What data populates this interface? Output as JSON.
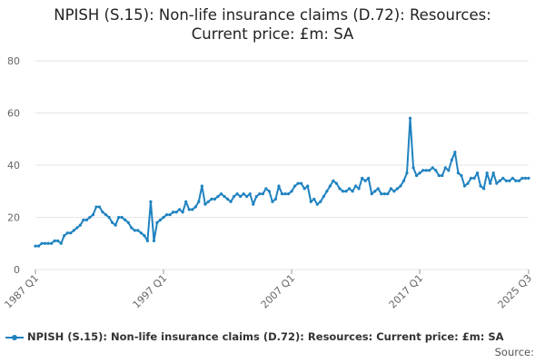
{
  "title_lines": [
    "NPISH (S.15): Non-life insurance claims (D.72): Resources:",
    "Current price: £m: SA"
  ],
  "source_label": "Source:",
  "colors": {
    "series": "#1f82c0",
    "grid": "#e6e6e6",
    "axis_text": "#666666"
  },
  "chart_data": {
    "type": "line",
    "title": "NPISH (S.15): Non-life insurance claims (D.72): Resources: Current price: £m: SA",
    "xlabel": "",
    "ylabel": "",
    "ylim": [
      0,
      80
    ],
    "yticks": [
      0,
      20,
      40,
      60,
      80
    ],
    "x_tick_labels": [
      "1987 Q1",
      "1997 Q1",
      "2007 Q1",
      "2017 Q1",
      "2025 Q3"
    ],
    "x_tick_index": [
      0,
      40,
      80,
      120,
      154
    ],
    "grid": true,
    "legend_position": "bottom",
    "series": [
      {
        "name": "NPISH (S.15): Non-life insurance claims (D.72): Resources: Current price: £m: SA",
        "start": "1987 Q1",
        "values": [
          9,
          9,
          10,
          10,
          10,
          10,
          11,
          11,
          10,
          13,
          14,
          14,
          15,
          16,
          17,
          19,
          19,
          20,
          21,
          24,
          24,
          22,
          21,
          20,
          18,
          17,
          20,
          20,
          19,
          18,
          16,
          15,
          15,
          14,
          13,
          11,
          26,
          11,
          18,
          19,
          20,
          21,
          21,
          22,
          22,
          23,
          22,
          26,
          23,
          23,
          24,
          26,
          32,
          25,
          26,
          27,
          27,
          28,
          29,
          28,
          27,
          26,
          28,
          29,
          28,
          29,
          28,
          29,
          25,
          28,
          29,
          29,
          31,
          30,
          26,
          27,
          32,
          29,
          29,
          29,
          30,
          32,
          33,
          33,
          31,
          32,
          26,
          27,
          25,
          26,
          28,
          30,
          32,
          34,
          33,
          31,
          30,
          30,
          31,
          30,
          32,
          31,
          35,
          34,
          35,
          29,
          30,
          31,
          29,
          29,
          29,
          31,
          30,
          31,
          32,
          34,
          37,
          58,
          39,
          36,
          37,
          38,
          38,
          38,
          39,
          38,
          36,
          36,
          39,
          38,
          42,
          45,
          37,
          36,
          32,
          33,
          35,
          35,
          37,
          32,
          31,
          37,
          33,
          37,
          33,
          34,
          35,
          34,
          34,
          35,
          34,
          34,
          35,
          35,
          35
        ]
      }
    ]
  }
}
